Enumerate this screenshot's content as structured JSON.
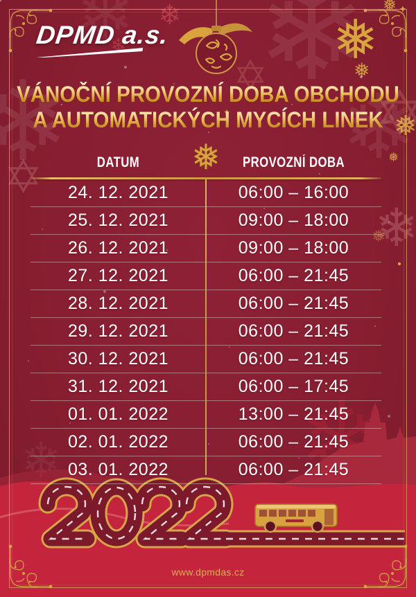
{
  "logo": {
    "text": "DPMD a.s."
  },
  "title": {
    "line1": "VÁNOČNÍ PROVOZNÍ DOBA OBCHODU",
    "line2": "A AUTOMATICKÝCH MYCÍCH LINEK"
  },
  "table": {
    "columns": [
      "DATUM",
      "PROVOZNÍ DOBA"
    ],
    "rows": [
      {
        "date": "24. 12. 2021",
        "hours": "06:00 – 16:00"
      },
      {
        "date": "25. 12. 2021",
        "hours": "09:00 – 18:00"
      },
      {
        "date": "26. 12. 2021",
        "hours": "09:00 – 18:00"
      },
      {
        "date": "27. 12. 2021",
        "hours": "06:00 – 21:45"
      },
      {
        "date": "28. 12. 2021",
        "hours": "06:00 – 21:45"
      },
      {
        "date": "29. 12. 2021",
        "hours": "06:00 – 21:45"
      },
      {
        "date": "30. 12. 2021",
        "hours": "06:00 – 21:45"
      },
      {
        "date": "31. 12. 2021",
        "hours": "06:00 – 17:45"
      },
      {
        "date": "01. 01. 2022",
        "hours": "13:00 – 21:45"
      },
      {
        "date": "02. 01. 2022",
        "hours": "06:00 – 21:45"
      },
      {
        "date": "03. 01. 2022",
        "hours": "06:00 – 21:45"
      }
    ]
  },
  "footer": {
    "year": "2022",
    "website": "www.dpmdas.cz"
  },
  "icons": {
    "snowflake": "❄",
    "snowflake_gold": "❅",
    "star": "✡",
    "sparkle": "✦"
  },
  "colors": {
    "background_dark_red": "#871e31",
    "background_bright_red": "#c4253c",
    "accent_gold": "#d9a43f",
    "text_white": "#ffffff"
  }
}
